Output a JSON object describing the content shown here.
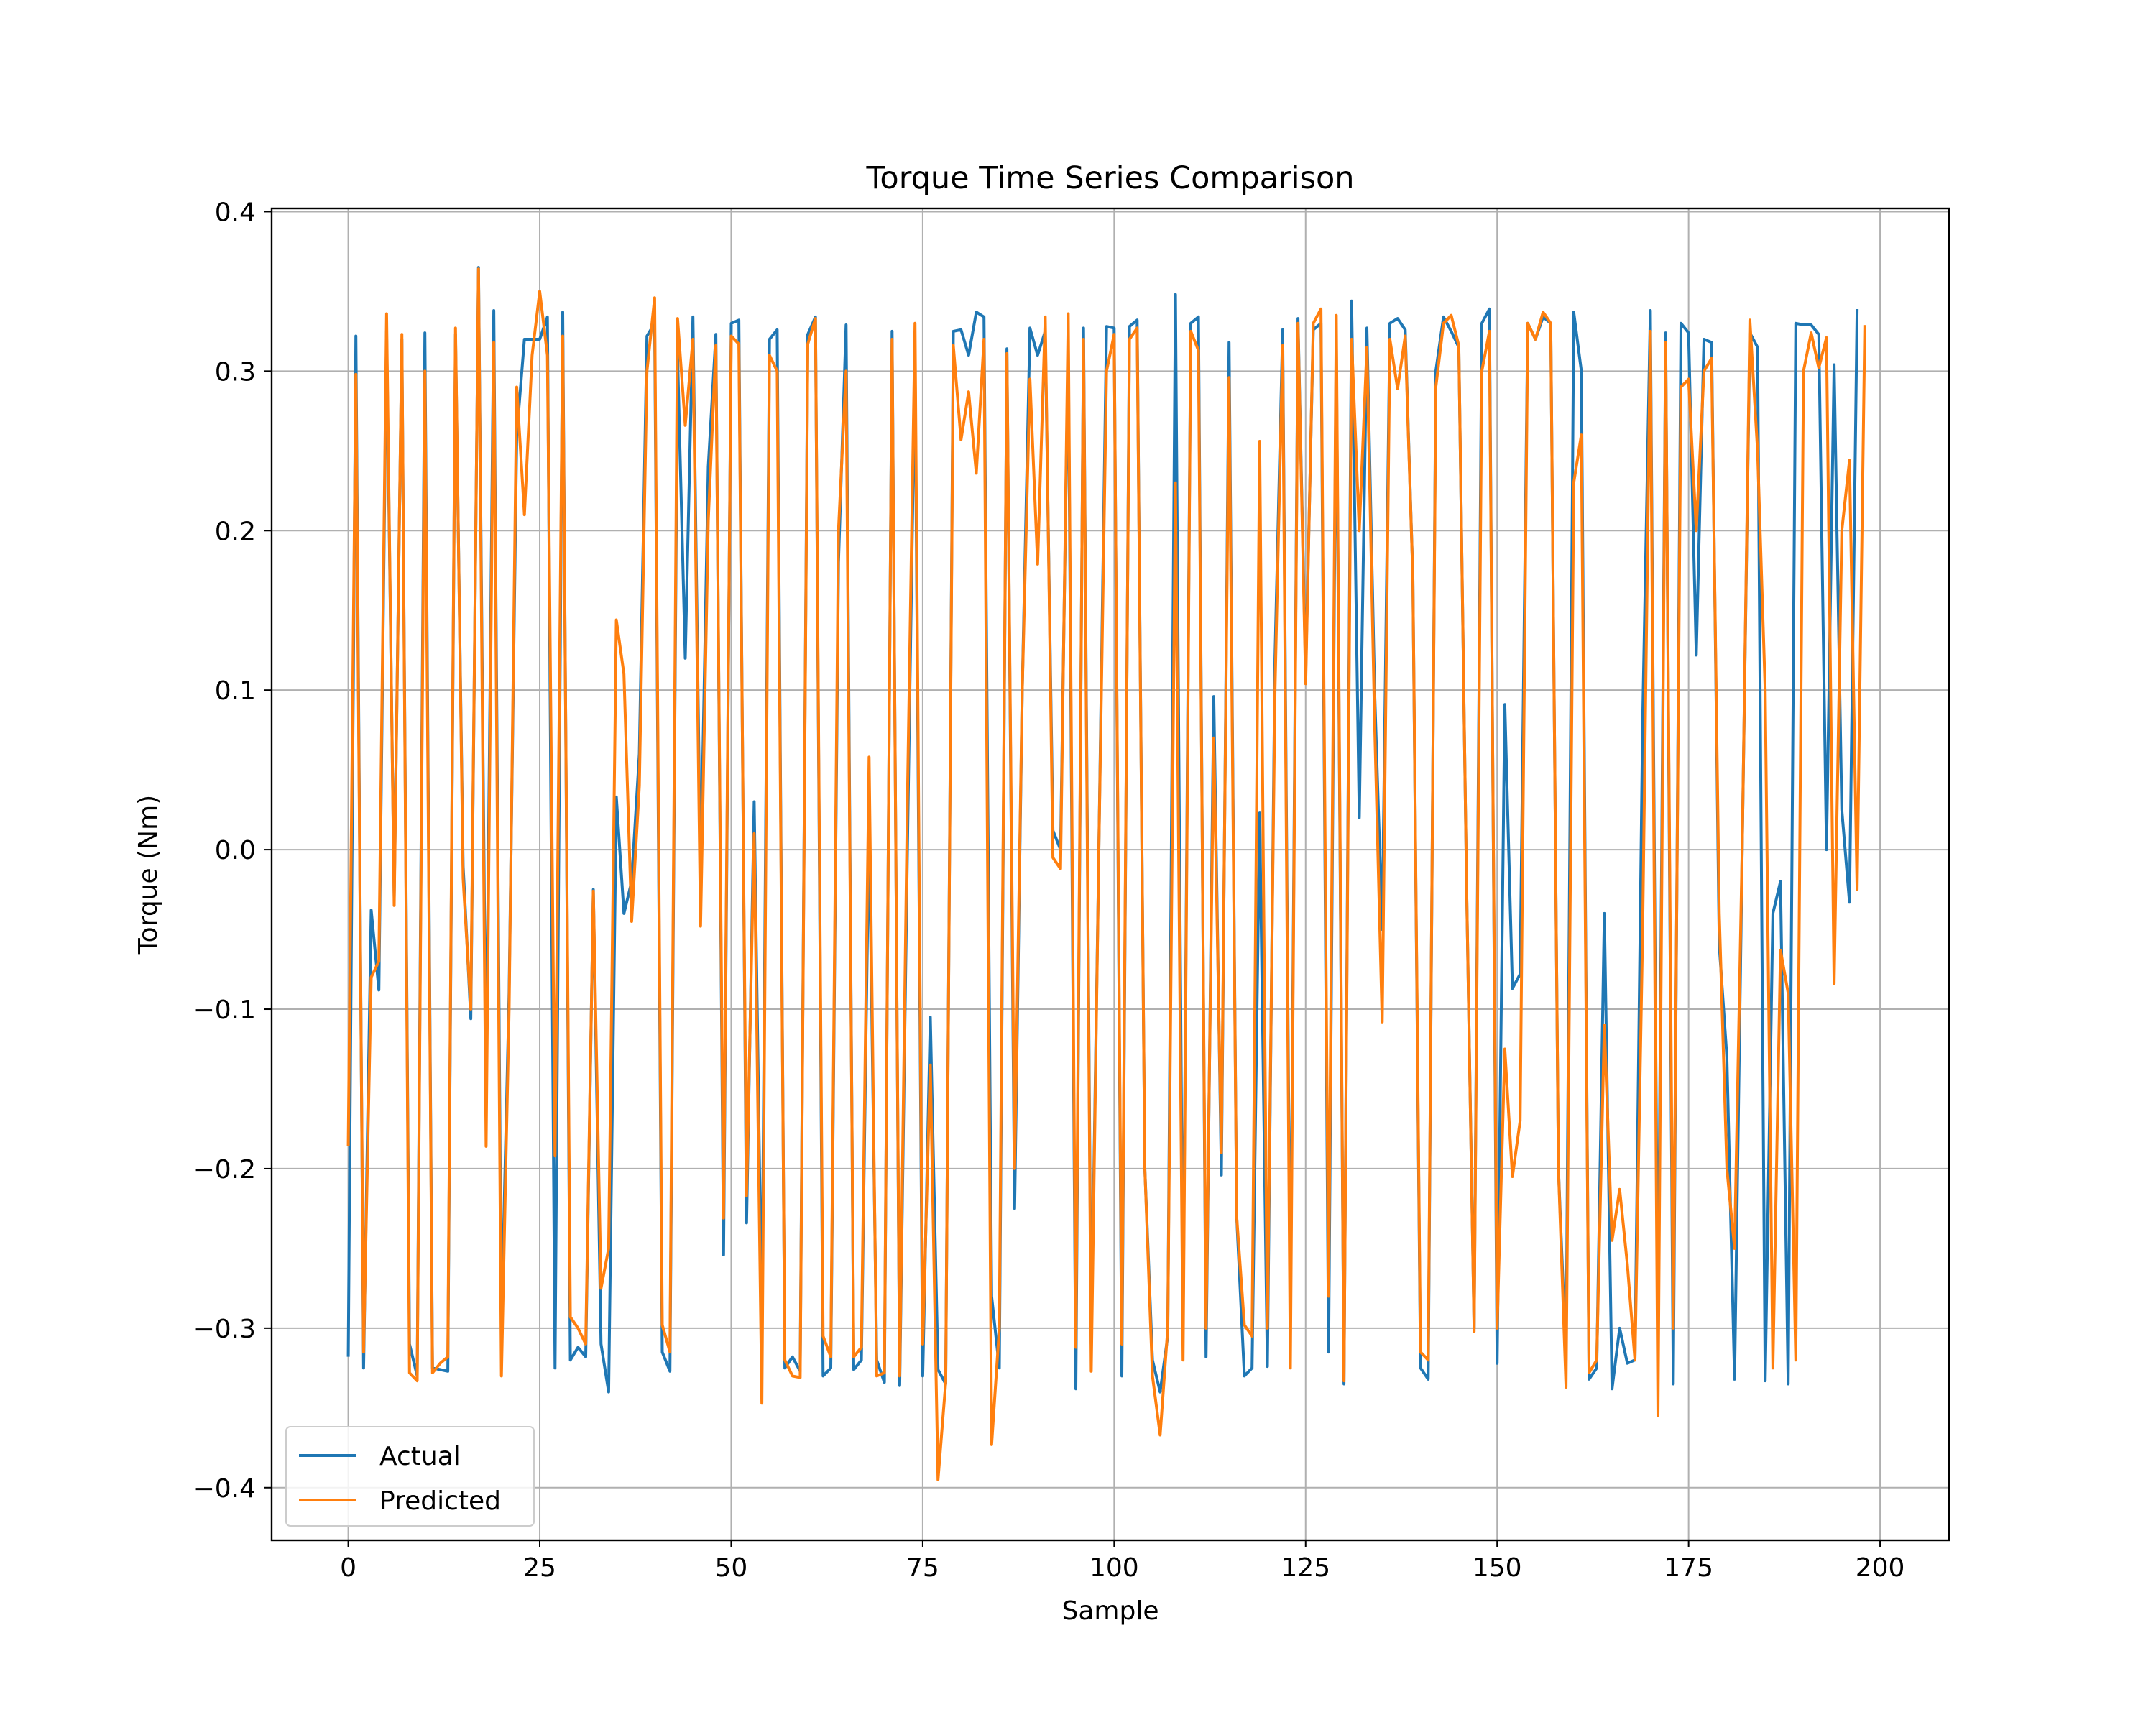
{
  "chart_data": {
    "type": "line",
    "title": "Torque Time Series Comparison",
    "xlabel": "Sample",
    "ylabel": "Torque (Nm)",
    "xlim": [
      -10,
      209
    ],
    "ylim": [
      -0.433,
      0.402
    ],
    "xticks": [
      0,
      25,
      50,
      75,
      100,
      125,
      150,
      175,
      200
    ],
    "yticks": [
      -0.4,
      -0.3,
      -0.2,
      -0.1,
      0.0,
      0.1,
      0.2,
      0.3,
      0.4
    ],
    "xtick_labels": [
      "0",
      "25",
      "50",
      "75",
      "100",
      "125",
      "150",
      "175",
      "200"
    ],
    "ytick_labels": [
      "−0.4",
      "−0.3",
      "−0.2",
      "−0.1",
      "0.0",
      "0.1",
      "0.2",
      "0.3",
      "0.4"
    ],
    "grid": true,
    "legend_position": "lower-left",
    "colors": {
      "Actual": "#1f77b4",
      "Predicted": "#ff7f0e"
    },
    "series": [
      {
        "name": "Actual",
        "values": [
          -0.317,
          0.322,
          -0.325,
          -0.038,
          -0.088,
          0.325,
          -0.03,
          0.32,
          -0.31,
          -0.33,
          0.324,
          -0.325,
          -0.326,
          -0.327,
          0.323,
          -0.01,
          -0.106,
          0.365,
          -0.15,
          0.338,
          -0.3,
          -0.09,
          0.26,
          0.32,
          0.32,
          0.32,
          0.334,
          -0.325,
          0.337,
          -0.32,
          -0.312,
          -0.318,
          -0.025,
          -0.31,
          -0.34,
          0.033,
          -0.04,
          -0.02,
          0.06,
          0.322,
          0.33,
          -0.315,
          -0.327,
          0.31,
          0.12,
          0.334,
          -0.02,
          0.24,
          0.323,
          -0.254,
          0.33,
          0.332,
          -0.234,
          0.03,
          -0.3,
          0.32,
          0.326,
          -0.325,
          -0.318,
          -0.327,
          0.323,
          0.334,
          -0.33,
          -0.325,
          0.18,
          0.329,
          -0.326,
          -0.32,
          0.02,
          -0.32,
          -0.334,
          0.325,
          -0.336,
          0.0,
          0.31,
          -0.33,
          -0.105,
          -0.326,
          -0.335,
          0.325,
          0.326,
          0.31,
          0.337,
          0.334,
          -0.28,
          -0.325,
          0.314,
          -0.225,
          0.1,
          0.327,
          0.31,
          0.325,
          0.012,
          0.0,
          0.32,
          -0.338,
          0.327,
          -0.31,
          0.0,
          0.328,
          0.327,
          -0.33,
          0.328,
          0.332,
          -0.2,
          -0.32,
          -0.34,
          -0.305,
          0.348,
          -0.3,
          0.33,
          0.334,
          -0.318,
          0.096,
          -0.204,
          0.318,
          -0.23,
          -0.33,
          -0.325,
          0.023,
          -0.324,
          0.12,
          0.326,
          -0.3,
          0.333,
          0.11,
          0.326,
          0.33,
          -0.315,
          0.32,
          -0.335,
          0.344,
          0.02,
          0.327,
          0.1,
          -0.05,
          0.33,
          0.333,
          0.326,
          0.17,
          -0.325,
          -0.332,
          0.3,
          0.334,
          0.325,
          0.315,
          -0.02,
          -0.3,
          0.33,
          0.339,
          -0.322,
          0.091,
          -0.087,
          -0.078,
          0.33,
          0.32,
          0.334,
          0.33,
          -0.2,
          -0.32,
          0.337,
          0.3,
          -0.332,
          -0.325,
          -0.04,
          -0.338,
          -0.3,
          -0.322,
          -0.32,
          0.08,
          0.338,
          -0.31,
          0.324,
          -0.335,
          0.33,
          0.324,
          0.122,
          0.32,
          0.318,
          -0.06,
          -0.13,
          -0.332,
          0.0,
          0.324,
          0.315,
          -0.333,
          -0.04,
          -0.02,
          -0.335,
          0.33,
          0.329,
          0.329,
          0.323,
          0.0,
          0.304,
          0.025,
          -0.033,
          0.338
        ]
      },
      {
        "name": "Predicted",
        "values": [
          -0.185,
          0.298,
          -0.315,
          -0.08,
          -0.07,
          0.336,
          -0.035,
          0.323,
          -0.328,
          -0.333,
          0.3,
          -0.328,
          -0.322,
          -0.318,
          0.327,
          -0.018,
          -0.1,
          0.364,
          -0.186,
          0.318,
          -0.33,
          -0.1,
          0.29,
          0.21,
          0.31,
          0.35,
          0.31,
          -0.192,
          0.322,
          -0.293,
          -0.3,
          -0.31,
          -0.026,
          -0.275,
          -0.25,
          0.144,
          0.11,
          -0.045,
          0.04,
          0.3,
          0.346,
          -0.298,
          -0.315,
          0.333,
          0.266,
          0.32,
          -0.048,
          0.206,
          0.316,
          -0.231,
          0.322,
          0.317,
          -0.217,
          0.01,
          -0.347,
          0.31,
          0.3,
          -0.32,
          -0.33,
          -0.331,
          0.317,
          0.333,
          -0.305,
          -0.318,
          0.2,
          0.3,
          -0.318,
          -0.312,
          0.058,
          -0.33,
          -0.328,
          0.32,
          -0.33,
          0.03,
          0.33,
          -0.31,
          -0.135,
          -0.395,
          -0.334,
          0.316,
          0.257,
          0.287,
          0.236,
          0.32,
          -0.373,
          -0.3,
          0.311,
          -0.2,
          0.1,
          0.295,
          0.179,
          0.334,
          -0.005,
          -0.012,
          0.336,
          -0.312,
          0.32,
          -0.327,
          0.0,
          0.3,
          0.323,
          -0.31,
          0.32,
          0.327,
          -0.2,
          -0.33,
          -0.367,
          -0.3,
          0.23,
          -0.32,
          0.325,
          0.313,
          -0.3,
          0.07,
          -0.19,
          0.296,
          -0.23,
          -0.298,
          -0.305,
          0.256,
          -0.3,
          0.1,
          0.316,
          -0.325,
          0.33,
          0.104,
          0.33,
          0.339,
          -0.28,
          0.335,
          -0.333,
          0.32,
          0.2,
          0.315,
          0.08,
          -0.108,
          0.32,
          0.289,
          0.322,
          0.17,
          -0.315,
          -0.32,
          0.29,
          0.33,
          0.335,
          0.316,
          -0.02,
          -0.302,
          0.3,
          0.325,
          -0.3,
          -0.125,
          -0.205,
          -0.17,
          0.33,
          0.32,
          0.337,
          0.33,
          -0.2,
          -0.337,
          0.23,
          0.26,
          -0.328,
          -0.32,
          -0.11,
          -0.245,
          -0.213,
          -0.26,
          -0.32,
          -0.05,
          0.325,
          -0.355,
          0.318,
          -0.3,
          0.29,
          0.295,
          0.2,
          0.3,
          0.308,
          -0.04,
          -0.2,
          -0.25,
          0.0,
          0.332,
          0.25,
          0.1,
          -0.325,
          -0.063,
          -0.09,
          -0.32,
          0.3,
          0.324,
          0.302,
          0.321,
          -0.084,
          0.2,
          0.244,
          -0.025,
          0.328
        ]
      }
    ]
  }
}
